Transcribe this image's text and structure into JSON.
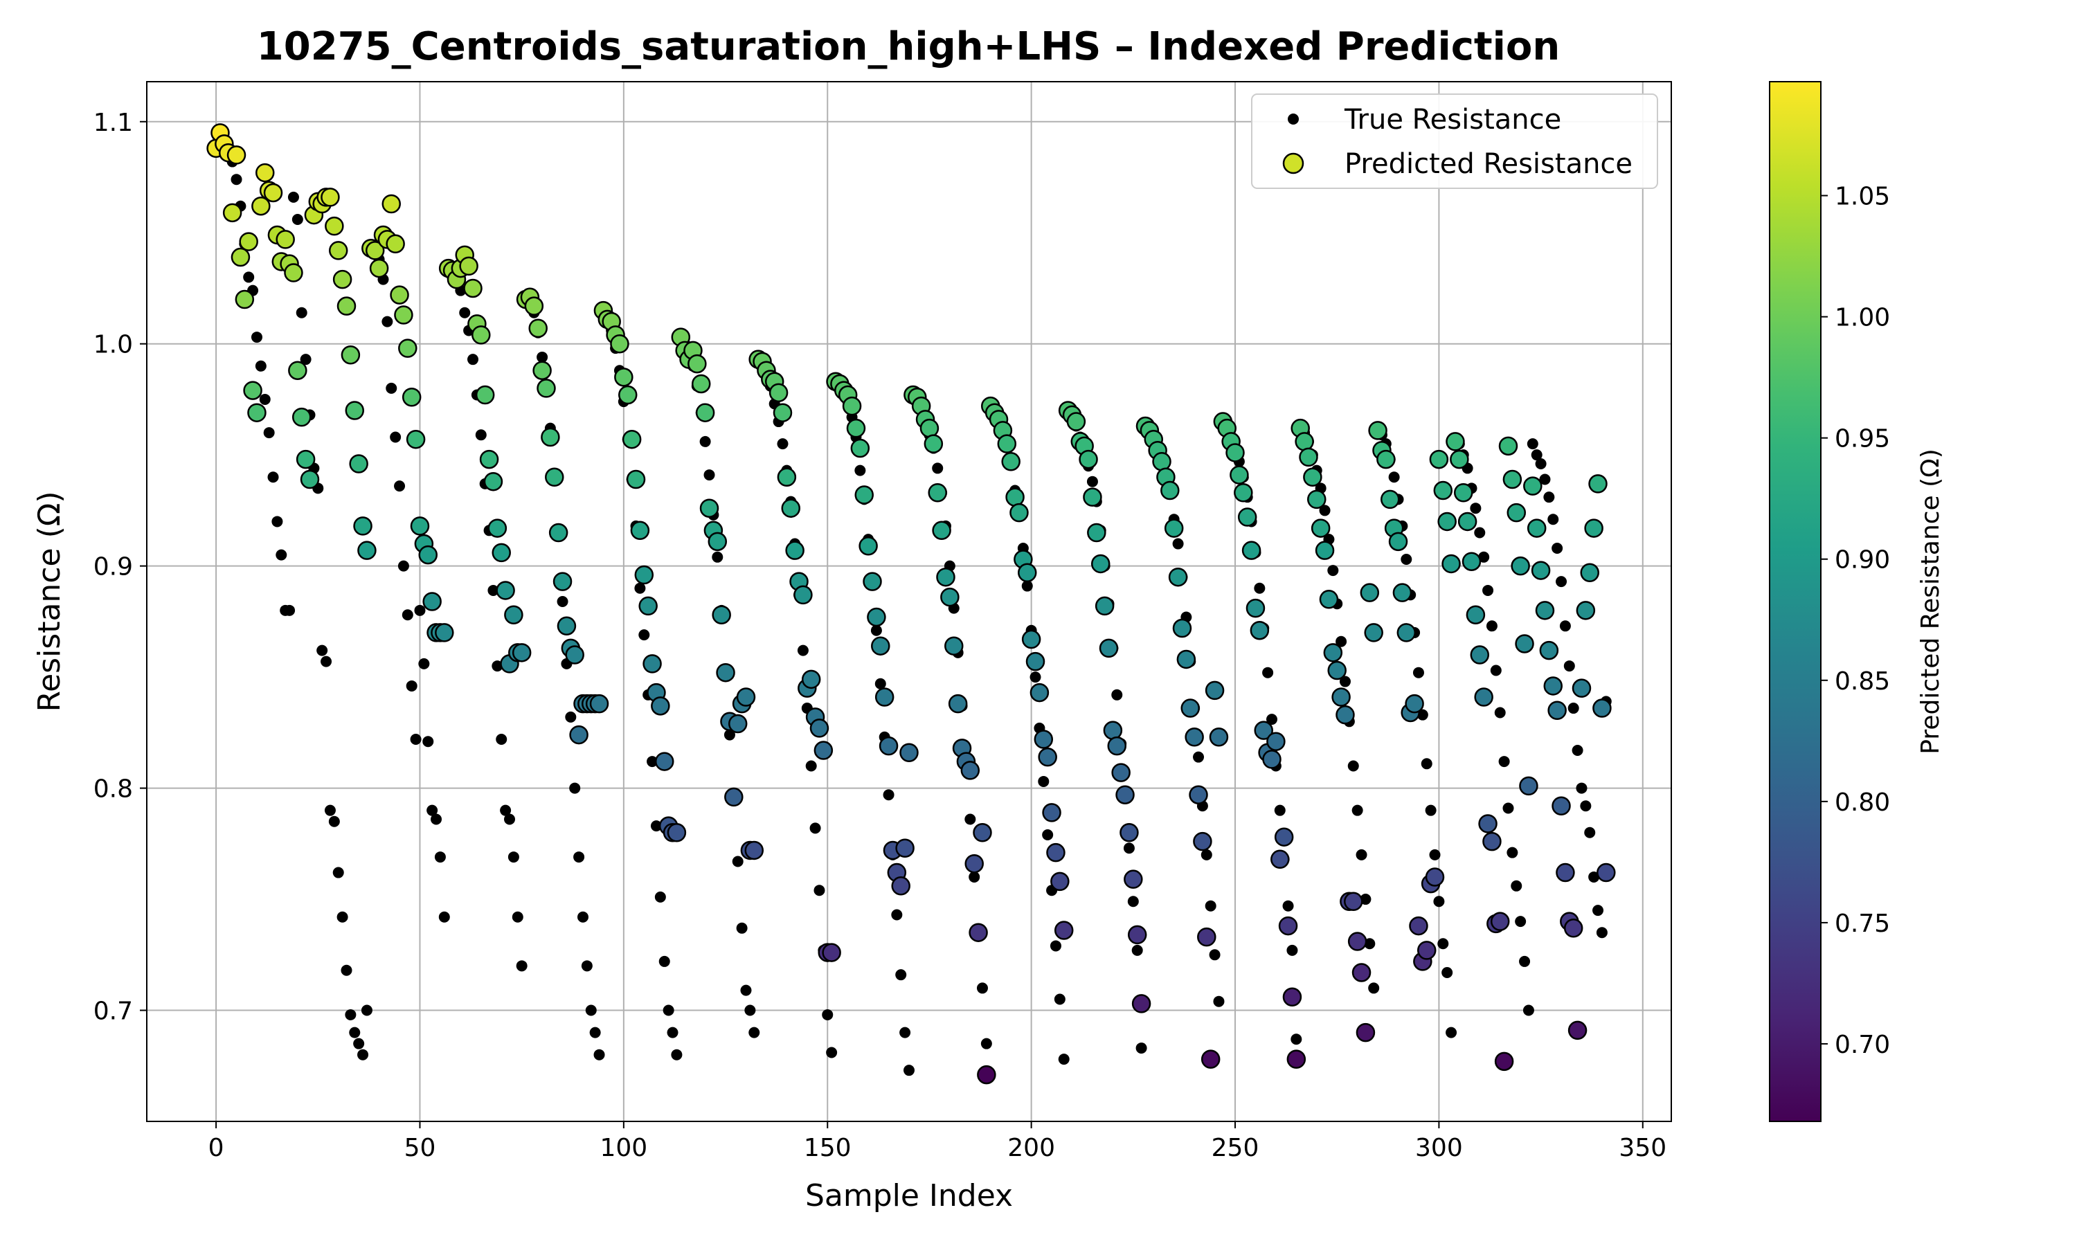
{
  "chart_data": {
    "type": "scatter",
    "title": "10275_Centroids_saturation_high+LHS – Indexed Prediction",
    "xlabel": "Sample Index",
    "ylabel": "Resistance (Ω)",
    "xlim": [
      -17,
      357
    ],
    "ylim": [
      0.65,
      1.118
    ],
    "x_ticks": [
      0,
      50,
      100,
      150,
      200,
      250,
      300,
      350
    ],
    "y_ticks": [
      0.7,
      0.8,
      0.9,
      1.0,
      1.1
    ],
    "x_tick_labels": [
      "0",
      "50",
      "100",
      "150",
      "200",
      "250",
      "300",
      "350"
    ],
    "y_tick_labels": [
      "0.7",
      "0.8",
      "0.9",
      "1.0",
      "1.1"
    ],
    "grid": true,
    "legend_position": "top-right",
    "legend": [
      "True Resistance",
      "Predicted Resistance"
    ],
    "colormap": "viridis",
    "colorbar": {
      "label": "Predicted Resistance (Ω)",
      "range": [
        0.668,
        1.097
      ],
      "ticks": [
        0.7,
        0.75,
        0.8,
        0.85,
        0.9,
        0.95,
        1.0,
        1.05
      ],
      "tick_labels": [
        "0.70",
        "0.75",
        "0.80",
        "0.85",
        "0.90",
        "0.95",
        "1.00",
        "1.05"
      ]
    },
    "true_color": "#000000",
    "series_stats": {
      "cycles": 18,
      "points_per_cycle": 19,
      "total_points": 342
    },
    "series": [
      {
        "name": "True Resistance",
        "cycles": [
          {
            "start": 0,
            "values": [
              1.088,
              1.09,
              1.089,
              1.085,
              1.082,
              1.074,
              1.062,
              1.045,
              1.03,
              1.024,
              1.003,
              0.99,
              0.975,
              0.96,
              0.94,
              0.92,
              0.905,
              0.88,
              0.88
            ]
          },
          {
            "start": 19,
            "values": [
              1.066,
              1.056,
              1.014,
              0.993,
              0.968,
              0.944,
              0.935,
              0.862,
              0.857,
              0.79,
              0.785,
              0.762,
              0.742,
              0.718,
              0.698,
              0.69,
              0.685,
              0.68,
              0.7
            ]
          },
          {
            "start": 38,
            "values": [
              1.043,
              1.042,
              1.038,
              1.029,
              1.01,
              0.98,
              0.958,
              0.936,
              0.9,
              0.878,
              0.846,
              0.822,
              0.88,
              0.856,
              0.821,
              0.79,
              0.786,
              0.769,
              0.742
            ]
          },
          {
            "start": 57,
            "values": [
              1.034,
              1.03,
              1.028,
              1.024,
              1.014,
              1.006,
              0.993,
              0.977,
              0.959,
              0.937,
              0.916,
              0.889,
              0.855,
              0.822,
              0.79,
              0.786,
              0.769,
              0.742,
              0.72
            ]
          },
          {
            "start": 76,
            "values": [
              1.02,
              1.018,
              1.014,
              1.005,
              0.994,
              0.98,
              0.962,
              0.941,
              0.914,
              0.884,
              0.856,
              0.832,
              0.8,
              0.769,
              0.742,
              0.72,
              0.7,
              0.69,
              0.68
            ]
          },
          {
            "start": 95,
            "values": [
              1.012,
              1.01,
              1.006,
              0.998,
              0.988,
              0.974,
              0.957,
              0.939,
              0.918,
              0.89,
              0.869,
              0.842,
              0.812,
              0.783,
              0.751,
              0.722,
              0.7,
              0.69,
              0.68
            ]
          },
          {
            "start": 114,
            "values": [
              1.003,
              1.0,
              0.996,
              0.99,
              0.981,
              0.969,
              0.956,
              0.941,
              0.923,
              0.904,
              0.88,
              0.853,
              0.824,
              0.797,
              0.767,
              0.737,
              0.709,
              0.7,
              0.69
            ]
          },
          {
            "start": 133,
            "values": [
              0.994,
              0.991,
              0.987,
              0.981,
              0.973,
              0.965,
              0.955,
              0.943,
              0.929,
              0.91,
              0.887,
              0.862,
              0.836,
              0.81,
              0.782,
              0.754,
              0.727,
              0.698,
              0.681
            ]
          },
          {
            "start": 152,
            "values": [
              0.984,
              0.982,
              0.979,
              0.974,
              0.967,
              0.958,
              0.943,
              0.93,
              0.912,
              0.893,
              0.871,
              0.847,
              0.823,
              0.797,
              0.77,
              0.743,
              0.716,
              0.69,
              0.673
            ]
          },
          {
            "start": 171,
            "values": [
              0.977,
              0.974,
              0.97,
              0.965,
              0.959,
              0.953,
              0.944,
              0.933,
              0.918,
              0.9,
              0.881,
              0.861,
              0.837,
              0.812,
              0.786,
              0.76,
              0.735,
              0.71,
              0.685
            ]
          },
          {
            "start": 190,
            "values": [
              0.973,
              0.97,
              0.966,
              0.961,
              0.955,
              0.948,
              0.934,
              0.924,
              0.908,
              0.891,
              0.871,
              0.85,
              0.827,
              0.803,
              0.779,
              0.754,
              0.729,
              0.705,
              0.678
            ]
          },
          {
            "start": 209,
            "values": [
              0.97,
              0.967,
              0.963,
              0.958,
              0.952,
              0.945,
              0.938,
              0.929,
              0.916,
              0.9,
              0.883,
              0.863,
              0.842,
              0.82,
              0.797,
              0.773,
              0.749,
              0.727,
              0.683
            ]
          },
          {
            "start": 228,
            "values": [
              0.963,
              0.96,
              0.957,
              0.953,
              0.947,
              0.941,
              0.935,
              0.921,
              0.91,
              0.895,
              0.877,
              0.857,
              0.836,
              0.814,
              0.792,
              0.77,
              0.747,
              0.725,
              0.704
            ]
          },
          {
            "start": 247,
            "values": [
              0.965,
              0.962,
              0.958,
              0.953,
              0.947,
              0.94,
              0.931,
              0.92,
              0.906,
              0.89,
              0.872,
              0.852,
              0.831,
              0.81,
              0.79,
              0.768,
              0.747,
              0.727,
              0.687
            ]
          },
          {
            "start": 266,
            "values": [
              0.962,
              0.96,
              0.956,
              0.95,
              0.943,
              0.935,
              0.925,
              0.912,
              0.898,
              0.883,
              0.866,
              0.848,
              0.83,
              0.81,
              0.79,
              0.77,
              0.75,
              0.73,
              0.71
            ]
          },
          {
            "start": 285,
            "values": [
              0.962,
              0.959,
              0.955,
              0.948,
              0.94,
              0.93,
              0.918,
              0.903,
              0.887,
              0.87,
              0.852,
              0.833,
              0.811,
              0.79,
              0.77,
              0.749,
              0.73,
              0.717,
              0.69
            ]
          },
          {
            "start": 304,
            "values": [
              0.957,
              0.955,
              0.95,
              0.944,
              0.935,
              0.926,
              0.915,
              0.904,
              0.889,
              0.873,
              0.853,
              0.834,
              0.812,
              0.791,
              0.771,
              0.756,
              0.74,
              0.722,
              0.7
            ]
          },
          {
            "start": 323,
            "values": [
              0.955,
              0.95,
              0.946,
              0.939,
              0.931,
              0.921,
              0.908,
              0.893,
              0.873,
              0.855,
              0.836,
              0.817,
              0.8,
              0.792,
              0.78,
              0.76,
              0.745,
              0.735,
              0.839
            ]
          }
        ]
      },
      {
        "name": "Predicted Resistance",
        "cycles": [
          {
            "start": 0,
            "values": [
              1.088,
              1.095,
              1.09,
              1.086,
              1.059,
              1.085,
              1.039,
              1.02,
              1.046,
              0.979,
              0.969,
              1.062,
              1.077,
              1.069,
              1.068,
              1.049,
              1.037,
              1.047,
              1.036
            ]
          },
          {
            "start": 19,
            "values": [
              1.032,
              0.988,
              0.967,
              0.948,
              0.939,
              1.058,
              1.064,
              1.063,
              1.066,
              1.066,
              1.053,
              1.042,
              1.029,
              1.017,
              0.995,
              0.97,
              0.946,
              0.918,
              0.907
            ]
          },
          {
            "start": 38,
            "values": [
              1.043,
              1.042,
              1.034,
              1.049,
              1.047,
              1.063,
              1.045,
              1.022,
              1.013,
              0.998,
              0.976,
              0.957,
              0.918,
              0.91,
              0.905,
              0.884,
              0.87,
              0.87,
              0.87
            ]
          },
          {
            "start": 57,
            "values": [
              1.034,
              1.033,
              1.029,
              1.034,
              1.04,
              1.035,
              1.025,
              1.009,
              1.004,
              0.977,
              0.948,
              0.938,
              0.917,
              0.906,
              0.889,
              0.856,
              0.878,
              0.861,
              0.861
            ]
          },
          {
            "start": 76,
            "values": [
              1.02,
              1.021,
              1.017,
              1.007,
              0.988,
              0.98,
              0.958,
              0.94,
              0.915,
              0.893,
              0.873,
              0.863,
              0.86,
              0.824,
              0.838,
              0.838,
              0.838,
              0.838,
              0.838
            ]
          },
          {
            "start": 95,
            "values": [
              1.015,
              1.011,
              1.01,
              1.004,
              1.0,
              0.985,
              0.977,
              0.957,
              0.939,
              0.916,
              0.896,
              0.882,
              0.856,
              0.843,
              0.837,
              0.812,
              0.783,
              0.78,
              0.78
            ]
          },
          {
            "start": 114,
            "values": [
              1.003,
              0.997,
              0.993,
              0.997,
              0.991,
              0.982,
              0.969,
              0.926,
              0.916,
              0.911,
              0.878,
              0.852,
              0.83,
              0.796,
              0.829,
              0.838,
              0.841,
              0.772,
              0.772
            ]
          },
          {
            "start": 133,
            "values": [
              0.993,
              0.992,
              0.988,
              0.984,
              0.983,
              0.978,
              0.969,
              0.94,
              0.926,
              0.907,
              0.893,
              0.887,
              0.845,
              0.849,
              0.832,
              0.827,
              0.817,
              0.726,
              0.726
            ]
          },
          {
            "start": 152,
            "values": [
              0.983,
              0.982,
              0.979,
              0.977,
              0.972,
              0.962,
              0.953,
              0.932,
              0.909,
              0.893,
              0.877,
              0.864,
              0.841,
              0.819,
              0.772,
              0.762,
              0.756,
              0.773,
              0.816
            ]
          },
          {
            "start": 171,
            "values": [
              0.977,
              0.976,
              0.972,
              0.966,
              0.962,
              0.955,
              0.933,
              0.916,
              0.895,
              0.886,
              0.864,
              0.838,
              0.818,
              0.812,
              0.808,
              0.766,
              0.735,
              0.78,
              0.671
            ]
          },
          {
            "start": 190,
            "values": [
              0.972,
              0.969,
              0.966,
              0.961,
              0.955,
              0.947,
              0.931,
              0.924,
              0.903,
              0.897,
              0.867,
              0.857,
              0.843,
              0.822,
              0.814,
              0.789,
              0.771,
              0.758,
              0.736
            ]
          },
          {
            "start": 209,
            "values": [
              0.97,
              0.968,
              0.965,
              0.956,
              0.954,
              0.948,
              0.931,
              0.915,
              0.901,
              0.882,
              0.863,
              0.826,
              0.819,
              0.807,
              0.797,
              0.78,
              0.759,
              0.734,
              0.703
            ]
          },
          {
            "start": 228,
            "values": [
              0.963,
              0.961,
              0.957,
              0.952,
              0.947,
              0.94,
              0.934,
              0.917,
              0.895,
              0.872,
              0.858,
              0.836,
              0.823,
              0.797,
              0.776,
              0.733,
              0.678,
              0.844,
              0.823
            ]
          },
          {
            "start": 247,
            "values": [
              0.965,
              0.962,
              0.956,
              0.951,
              0.941,
              0.933,
              0.922,
              0.907,
              0.881,
              0.871,
              0.826,
              0.816,
              0.813,
              0.821,
              0.768,
              0.778,
              0.738,
              0.706,
              0.678
            ]
          },
          {
            "start": 266,
            "values": [
              0.962,
              0.956,
              0.949,
              0.94,
              0.93,
              0.917,
              0.907,
              0.885,
              0.861,
              0.853,
              0.841,
              0.833,
              0.749,
              0.749,
              0.731,
              0.717,
              0.69,
              0.888,
              0.87
            ]
          },
          {
            "start": 285,
            "values": [
              0.961,
              0.952,
              0.948,
              0.93,
              0.917,
              0.911,
              0.888,
              0.87,
              0.834,
              0.838,
              0.738,
              0.722,
              0.727,
              0.757,
              0.76,
              0.948,
              0.934,
              0.92,
              0.901
            ]
          },
          {
            "start": 304,
            "values": [
              0.956,
              0.948,
              0.933,
              0.92,
              0.902,
              0.878,
              0.86,
              0.841,
              0.784,
              0.776,
              0.739,
              0.74,
              0.677,
              0.954,
              0.939,
              0.924,
              0.9,
              0.865,
              0.801
            ]
          },
          {
            "start": 323,
            "values": [
              0.936,
              0.917,
              0.898,
              0.88,
              0.862,
              0.846,
              0.835,
              0.792,
              0.762,
              0.74,
              0.737,
              0.691,
              0.845,
              0.88,
              0.897,
              0.917,
              0.937,
              0.836,
              0.762
            ]
          }
        ]
      }
    ]
  }
}
